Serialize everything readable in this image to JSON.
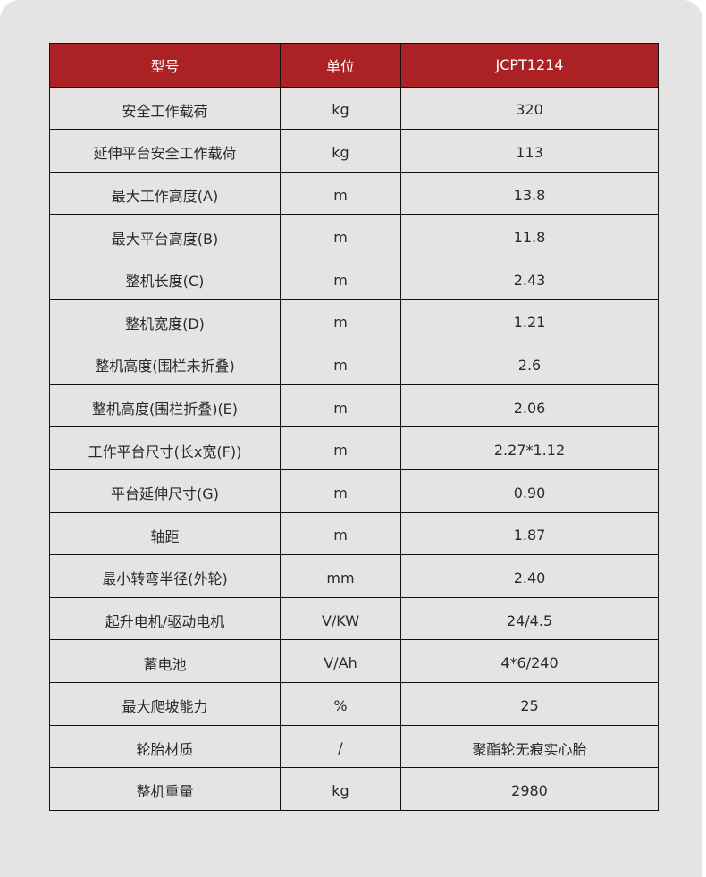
{
  "colors": {
    "header_bg": "#ac2124",
    "background": "#e4e4e4",
    "border": "#111111"
  },
  "header": [
    "型号",
    "单位",
    "JCPT1214"
  ],
  "rows": [
    [
      "安全工作载荷",
      "kg",
      "320"
    ],
    [
      "延伸平台安全工作载荷",
      "kg",
      "113"
    ],
    [
      "最大工作高度(A)",
      "m",
      "13.8"
    ],
    [
      "最大平台高度(B)",
      "m",
      "11.8"
    ],
    [
      "整机长度(C)",
      "m",
      "2.43"
    ],
    [
      "整机宽度(D)",
      "m",
      "1.21"
    ],
    [
      "整机高度(围栏未折叠)",
      "m",
      "2.6"
    ],
    [
      "整机高度(围栏折叠)(E)",
      "m",
      "2.06"
    ],
    [
      "工作平台尺寸(长x宽(F))",
      "m",
      "2.27*1.12"
    ],
    [
      "平台延伸尺寸(G)",
      "m",
      "0.90"
    ],
    [
      "轴距",
      "m",
      "1.87"
    ],
    [
      "最小转弯半径(外轮)",
      "mm",
      "2.40"
    ],
    [
      "起升电机/驱动电机",
      "V/KW",
      "24/4.5"
    ],
    [
      "蓄电池",
      "V/Ah",
      "4*6/240"
    ],
    [
      "最大爬坡能力",
      "%",
      "25"
    ],
    [
      "轮胎材质",
      "/",
      "聚酯轮无痕实心胎"
    ],
    [
      "整机重量",
      "kg",
      "2980"
    ]
  ]
}
